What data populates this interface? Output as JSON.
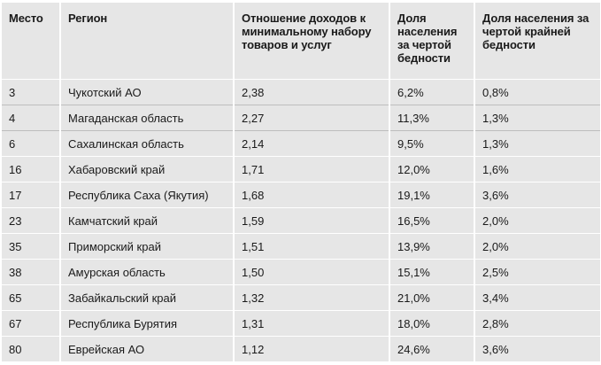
{
  "table": {
    "headers": [
      "Место",
      "Регион",
      "Отношение доходов к минимальному набору товаров и услуг",
      "Доля населения за чертой бедности",
      "Доля населения за чертой крайней бедности"
    ],
    "rows": [
      [
        "3",
        "Чукотский АО",
        "2,38",
        "6,2%",
        "0,8%"
      ],
      [
        "4",
        "Магаданская область",
        "2,27",
        "11,3%",
        "1,3%"
      ],
      [
        "6",
        "Сахалинская область",
        "2,14",
        "9,5%",
        "1,3%"
      ],
      [
        "16",
        "Хабаровский край",
        "1,71",
        "12,0%",
        "1,6%"
      ],
      [
        "17",
        "Республика Саха (Якутия)",
        "1,68",
        "19,1%",
        "3,6%"
      ],
      [
        "23",
        "Камчатский край",
        "1,59",
        "16,5%",
        "2,0%"
      ],
      [
        "35",
        "Приморский край",
        "1,51",
        "13,9%",
        "2,0%"
      ],
      [
        "38",
        "Амурская область",
        "1,50",
        "15,1%",
        "2,5%"
      ],
      [
        "65",
        "Забайкальский край",
        "1,32",
        "21,0%",
        "3,4%"
      ],
      [
        "67",
        "Республика Бурятия",
        "1,31",
        "18,0%",
        "2,8%"
      ],
      [
        "80",
        "Еврейская АО",
        "1,12",
        "24,6%",
        "3,6%"
      ]
    ]
  }
}
